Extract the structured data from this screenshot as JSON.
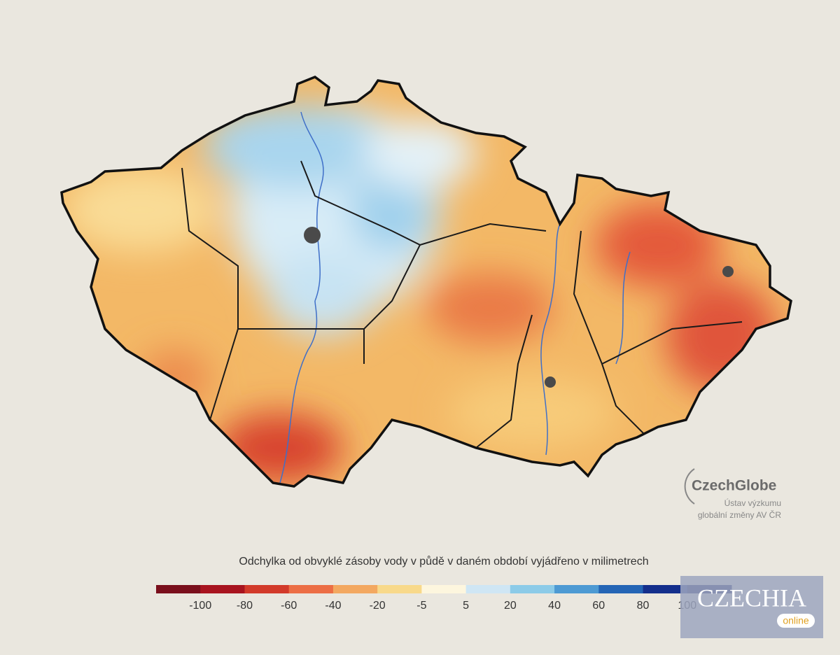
{
  "legend": {
    "title": "Odchylka od obvyklé zásoby vody v půdě v daném období vyjádřeno v milimetrech",
    "ticks": [
      -100,
      -80,
      -60,
      -40,
      -20,
      -5,
      5,
      20,
      40,
      60,
      80,
      100
    ],
    "colors": [
      "#7a0f1c",
      "#a8141f",
      "#d23a2a",
      "#ec6e45",
      "#f3a860",
      "#f8d98a",
      "#fdf6de",
      "#cfe6f4",
      "#8ccbe8",
      "#4d9ad3",
      "#2465b5",
      "#142f8c",
      "#0a1a5c"
    ]
  },
  "logo": {
    "name": "CzechGlobe",
    "line1": "Ústav výzkumu",
    "line2": "globální změny AV ČR"
  },
  "watermark": {
    "name": "CZECHIA",
    "tag": "online"
  }
}
